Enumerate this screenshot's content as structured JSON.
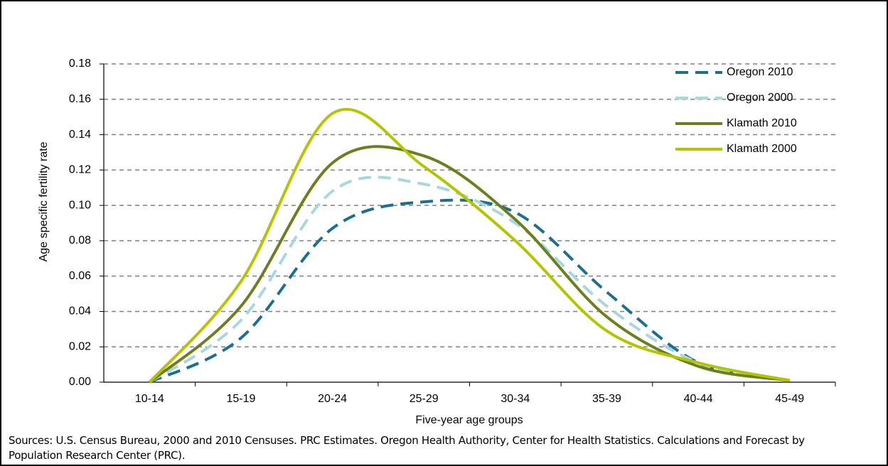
{
  "chart_data": {
    "type": "line",
    "xlabel": "Five-year age groups",
    "ylabel": "Age specific fertility rate",
    "note": "Sources: U.S. Census Bureau, 2000 and 2010 Censuses. PRC Estimates. Oregon Health Authority, Center for Health Statistics. Calculations and Forecast by Population Research Center (PRC).",
    "categories": [
      "10-14",
      "15-19",
      "20-24",
      "25-29",
      "30-34",
      "35-39",
      "40-44",
      "45-49"
    ],
    "series": [
      {
        "name": "Oregon 2010",
        "color": "#1b6f8f",
        "dashed": true,
        "values": [
          0,
          0.025,
          0.087,
          0.102,
          0.096,
          0.051,
          0.011,
          0.001
        ]
      },
      {
        "name": "Oregon 2000",
        "color": "#a7d8de",
        "dashed": true,
        "values": [
          0,
          0.035,
          0.108,
          0.112,
          0.09,
          0.043,
          0.011,
          0.001
        ]
      },
      {
        "name": "Klamath 2010",
        "color": "#6b7f1e",
        "dashed": false,
        "values": [
          0,
          0.043,
          0.124,
          0.128,
          0.092,
          0.037,
          0.009,
          0.001
        ]
      },
      {
        "name": "Klamath 2000",
        "color": "#b5c400",
        "dashed": false,
        "values": [
          0,
          0.057,
          0.152,
          0.122,
          0.08,
          0.029,
          0.011,
          0.001
        ]
      }
    ],
    "ylim": [
      0,
      0.18
    ],
    "yticks": [
      {
        "value": 0,
        "label": "0.00"
      },
      {
        "value": 0.02,
        "label": "0.02"
      },
      {
        "value": 0.04,
        "label": "0.04"
      },
      {
        "value": 0.06,
        "label": "0.06"
      },
      {
        "value": 0.08,
        "label": "0.08"
      },
      {
        "value": 0.1,
        "label": "0.10"
      },
      {
        "value": 0.12,
        "label": "0.12"
      },
      {
        "value": 0.14,
        "label": "0.14"
      },
      {
        "value": 0.16,
        "label": "0.16"
      },
      {
        "value": 0.18,
        "label": "0.18"
      }
    ],
    "grid": true,
    "legend": "top-right"
  }
}
